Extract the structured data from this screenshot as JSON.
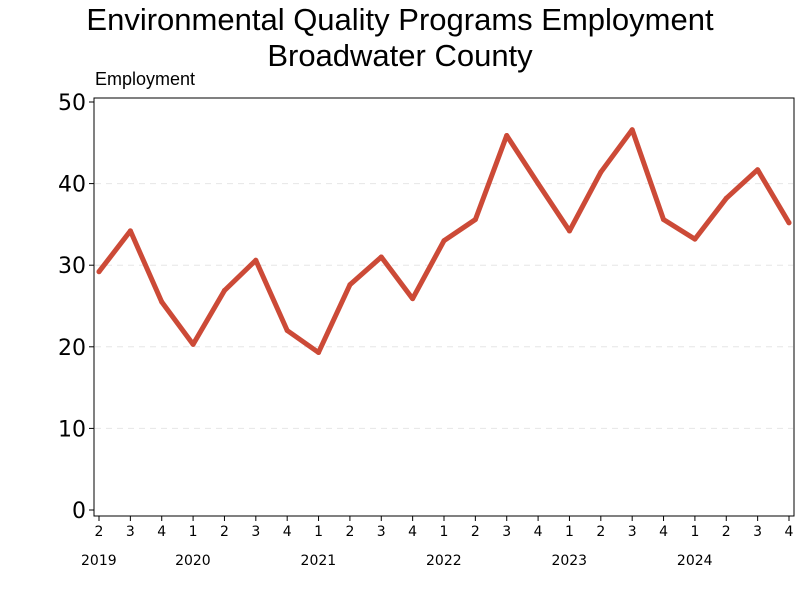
{
  "chart_data": {
    "type": "line",
    "title_line1": "Environmental Quality Programs Employment",
    "title_line2": "Broadwater County",
    "ylabel": "Employment",
    "ylim": [
      0,
      50
    ],
    "yticks": [
      0,
      10,
      20,
      30,
      40,
      50
    ],
    "grid": "horizontal dashed",
    "line_color": "#cc4a37",
    "quarter_labels": [
      "2",
      "3",
      "4",
      "1",
      "2",
      "3",
      "4",
      "1",
      "2",
      "3",
      "4",
      "1",
      "2",
      "3",
      "4",
      "1",
      "2",
      "3",
      "4",
      "1",
      "2",
      "3",
      "4"
    ],
    "year_labels": [
      {
        "label": "2019",
        "start_index": 0
      },
      {
        "label": "2020",
        "start_index": 3
      },
      {
        "label": "2021",
        "start_index": 7
      },
      {
        "label": "2022",
        "start_index": 11
      },
      {
        "label": "2023",
        "start_index": 15
      },
      {
        "label": "2024",
        "start_index": 19
      }
    ],
    "values": [
      29.2,
      34.2,
      25.5,
      20.3,
      26.9,
      30.6,
      22.0,
      19.3,
      27.6,
      31.0,
      25.9,
      33.0,
      35.6,
      45.9,
      40.0,
      34.2,
      41.4,
      46.6,
      35.6,
      33.2,
      38.2,
      41.7,
      35.2
    ]
  }
}
